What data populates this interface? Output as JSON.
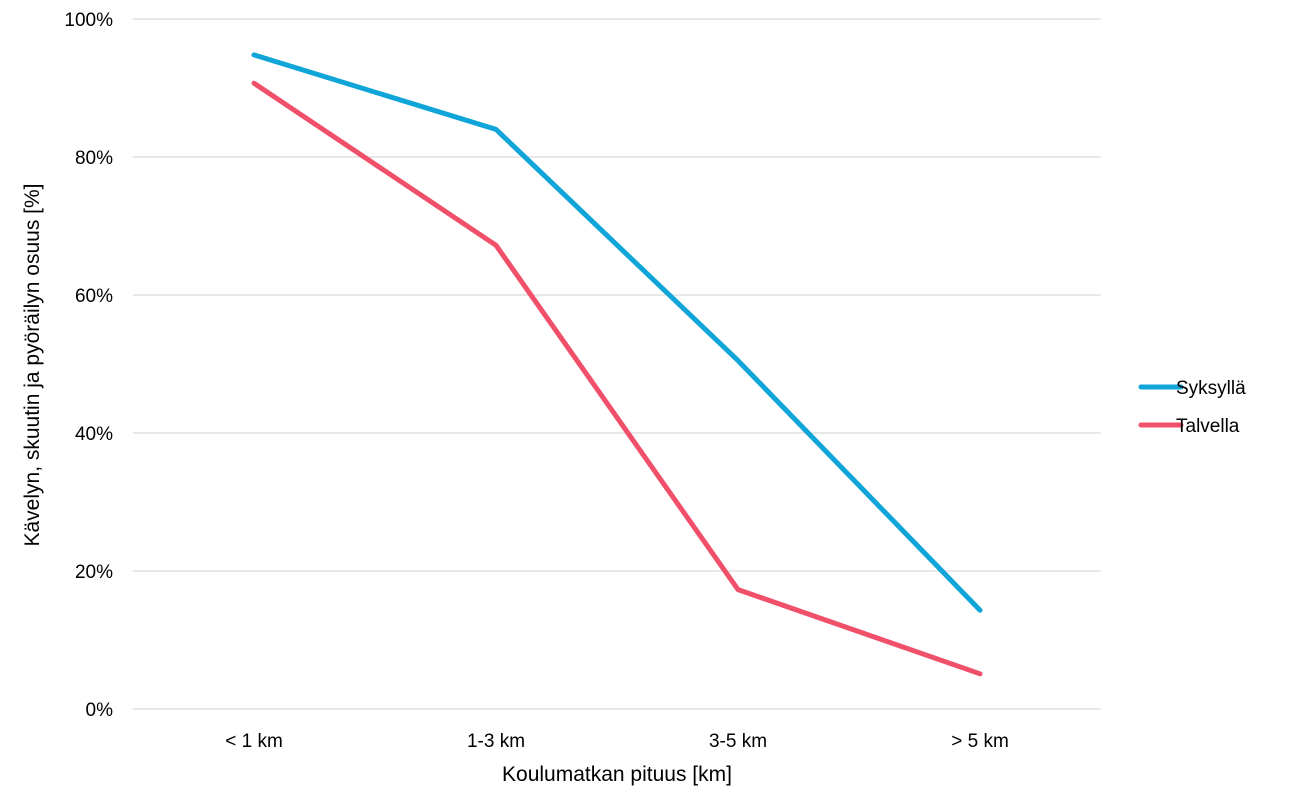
{
  "chart_data": {
    "type": "line",
    "title": "",
    "xlabel": "Koulumatkan pituus [km]",
    "ylabel": "Kävelyn, skuutin ja pyöräilyn osuus [%]",
    "categories": [
      "< 1 km",
      "1-3 km",
      "3-5 km",
      "> 5 km"
    ],
    "ylim": [
      0,
      100
    ],
    "yticks": [
      0,
      20,
      40,
      60,
      80,
      100
    ],
    "ytick_labels": [
      "0%",
      "20%",
      "40%",
      "60%",
      "80%",
      "100%"
    ],
    "grid": true,
    "legend_position": "right",
    "series": [
      {
        "name": "Syksyllä",
        "color": "#0fa5d8",
        "values": [
          94.8,
          84.0,
          50.5,
          14.3
        ]
      },
      {
        "name": "Talvella",
        "color": "#f0506a",
        "values": [
          90.7,
          67.2,
          17.3,
          5.1
        ]
      }
    ]
  }
}
